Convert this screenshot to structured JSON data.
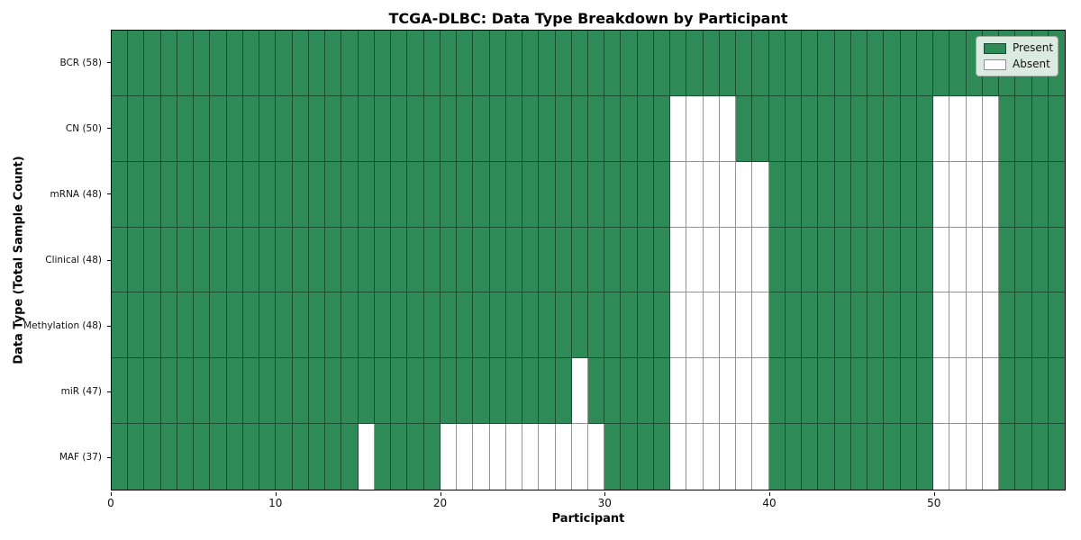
{
  "chart_data": {
    "type": "heatmap",
    "title": "TCGA-DLBC: Data Type Breakdown by Participant",
    "xlabel": "Participant",
    "ylabel": "Data Type (Total Sample Count)",
    "n_participants": 58,
    "x_range": [
      0,
      58
    ],
    "x_ticks": [
      0,
      10,
      20,
      30,
      40,
      50
    ],
    "grid": "cell-borders-on",
    "colors": {
      "present": "#2e8b57",
      "absent": "#ffffff"
    },
    "legend": {
      "position": "upper right",
      "entries": [
        "Present",
        "Absent"
      ]
    },
    "rows": [
      {
        "label": "BCR (58)",
        "data_type": "BCR",
        "total_samples": 58,
        "absent_participants": []
      },
      {
        "label": "CN (50)",
        "data_type": "CN",
        "total_samples": 50,
        "absent_participants": [
          34,
          35,
          36,
          37,
          50,
          51,
          52,
          53
        ]
      },
      {
        "label": "mRNA (48)",
        "data_type": "mRNA",
        "total_samples": 48,
        "absent_participants": [
          34,
          35,
          36,
          37,
          38,
          39,
          50,
          51,
          52,
          53
        ]
      },
      {
        "label": "Clinical (48)",
        "data_type": "Clinical",
        "total_samples": 48,
        "absent_participants": [
          34,
          35,
          36,
          37,
          38,
          39,
          50,
          51,
          52,
          53
        ]
      },
      {
        "label": "Methylation (48)",
        "data_type": "Methylation",
        "total_samples": 48,
        "absent_participants": [
          34,
          35,
          36,
          37,
          38,
          39,
          50,
          51,
          52,
          53
        ]
      },
      {
        "label": "miR (47)",
        "data_type": "miR",
        "total_samples": 47,
        "absent_participants": [
          28,
          34,
          35,
          36,
          37,
          38,
          39,
          50,
          51,
          52,
          53
        ]
      },
      {
        "label": "MAF (37)",
        "data_type": "MAF",
        "total_samples": 37,
        "absent_participants": [
          15,
          20,
          21,
          22,
          23,
          24,
          25,
          26,
          27,
          28,
          29,
          34,
          35,
          36,
          37,
          38,
          39,
          50,
          51,
          52,
          53
        ]
      }
    ]
  }
}
